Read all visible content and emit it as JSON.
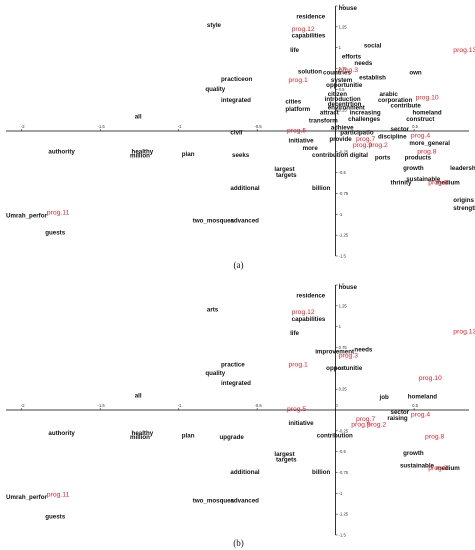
{
  "colors": {
    "word": "#111111",
    "program": "#e8202a",
    "axis": "#000000"
  },
  "chart_data": [
    {
      "type": "scatter",
      "caption": "(a)",
      "xlim": [
        -2.1,
        0.85
      ],
      "ylim": [
        -1.5,
        1.5
      ],
      "x_ticks": [
        "-2",
        "-1.5",
        "-1",
        "-0.5",
        "0",
        "0.5"
      ],
      "y_ticks": [
        "1.5",
        "1.25",
        "1",
        "0.75",
        "0.5",
        "0.25",
        "-0.25",
        "-0.5",
        "-0.75",
        "-1",
        "-1.25",
        "-1.5"
      ],
      "terms": [
        {
          "label": "house",
          "x": 0.02,
          "y": 1.45
        },
        {
          "label": "residence",
          "x": -0.25,
          "y": 1.35
        },
        {
          "label": "style",
          "x": -0.82,
          "y": 1.25
        },
        {
          "label": "capabilities",
          "x": -0.28,
          "y": 1.12
        },
        {
          "label": "life",
          "x": -0.29,
          "y": 0.95
        },
        {
          "label": "social",
          "x": 0.18,
          "y": 1.0
        },
        {
          "label": "efforts",
          "x": 0.04,
          "y": 0.87
        },
        {
          "label": "needs",
          "x": 0.12,
          "y": 0.79
        },
        {
          "label": "solution",
          "x": -0.24,
          "y": 0.69
        },
        {
          "label": "countries",
          "x": -0.08,
          "y": 0.68
        },
        {
          "label": "system",
          "x": -0.03,
          "y": 0.59
        },
        {
          "label": "establish",
          "x": 0.15,
          "y": 0.62
        },
        {
          "label": "own",
          "x": 0.47,
          "y": 0.68
        },
        {
          "label": "practiceon",
          "x": -0.73,
          "y": 0.6
        },
        {
          "label": "opportunitie",
          "x": -0.06,
          "y": 0.53
        },
        {
          "label": "quality",
          "x": -0.83,
          "y": 0.48
        },
        {
          "label": "citizen",
          "x": -0.05,
          "y": 0.42
        },
        {
          "label": "introduction",
          "x": -0.07,
          "y": 0.36
        },
        {
          "label": "arabic",
          "x": 0.28,
          "y": 0.42
        },
        {
          "label": "integrated",
          "x": -0.73,
          "y": 0.35
        },
        {
          "label": "cities",
          "x": -0.32,
          "y": 0.33
        },
        {
          "label": "decentrtion",
          "x": -0.05,
          "y": 0.3
        },
        {
          "label": "corporation",
          "x": 0.27,
          "y": 0.35
        },
        {
          "label": "platform",
          "x": -0.32,
          "y": 0.24
        },
        {
          "label": "environment",
          "x": -0.05,
          "y": 0.26
        },
        {
          "label": "contribute",
          "x": 0.35,
          "y": 0.28
        },
        {
          "label": "attract",
          "x": -0.1,
          "y": 0.2
        },
        {
          "label": "increasing",
          "x": 0.09,
          "y": 0.2
        },
        {
          "label": "homeland",
          "x": 0.49,
          "y": 0.2
        },
        {
          "label": "transform",
          "x": -0.17,
          "y": 0.1
        },
        {
          "label": "challenges",
          "x": 0.08,
          "y": 0.12
        },
        {
          "label": "construct",
          "x": 0.45,
          "y": 0.12
        },
        {
          "label": "all",
          "x": -1.28,
          "y": 0.15
        },
        {
          "label": "achieve",
          "x": -0.03,
          "y": 0.02
        },
        {
          "label": "sector",
          "x": 0.35,
          "y": 0.0
        },
        {
          "label": "civil",
          "x": -0.67,
          "y": -0.04
        },
        {
          "label": "participatio",
          "x": 0.03,
          "y": -0.04
        },
        {
          "label": "discipline",
          "x": 0.27,
          "y": -0.09
        },
        {
          "label": "initiative",
          "x": -0.3,
          "y": -0.14
        },
        {
          "label": "provide",
          "x": -0.04,
          "y": -0.12
        },
        {
          "label": "more_general",
          "x": 0.47,
          "y": -0.17
        },
        {
          "label": "more",
          "x": -0.21,
          "y": -0.23
        },
        {
          "label": "authority",
          "x": -1.83,
          "y": -0.27
        },
        {
          "label": "healthy",
          "x": -1.3,
          "y": -0.27
        },
        {
          "label": "million",
          "x": -1.31,
          "y": -0.32
        },
        {
          "label": "plan",
          "x": -0.98,
          "y": -0.3
        },
        {
          "label": "seeks",
          "x": -0.66,
          "y": -0.31
        },
        {
          "label": "contribution",
          "x": -0.15,
          "y": -0.31
        },
        {
          "label": "digital",
          "x": 0.09,
          "y": -0.31
        },
        {
          "label": "ports",
          "x": 0.25,
          "y": -0.34
        },
        {
          "label": "products",
          "x": 0.44,
          "y": -0.34
        },
        {
          "label": "growth",
          "x": 0.43,
          "y": -0.47
        },
        {
          "label": "leadership",
          "x": 0.73,
          "y": -0.47
        },
        {
          "label": "largest",
          "x": -0.39,
          "y": -0.48
        },
        {
          "label": "targets",
          "x": -0.38,
          "y": -0.55
        },
        {
          "label": "sustainable",
          "x": 0.45,
          "y": -0.6
        },
        {
          "label": "thrinity",
          "x": 0.35,
          "y": -0.64
        },
        {
          "label": "medium",
          "x": 0.64,
          "y": -0.64
        },
        {
          "label": "additional",
          "x": -0.67,
          "y": -0.71
        },
        {
          "label": "billion",
          "x": -0.15,
          "y": -0.71
        },
        {
          "label": "origins",
          "x": 0.75,
          "y": -0.85
        },
        {
          "label": "strength",
          "x": 0.75,
          "y": -0.95
        },
        {
          "label": "two_mosques",
          "x": -0.91,
          "y": -1.1
        },
        {
          "label": "advanced",
          "x": -0.67,
          "y": -1.1
        },
        {
          "label": "Umrah_perfor",
          "x": -2.1,
          "y": -1.04
        },
        {
          "label": "guests",
          "x": -1.85,
          "y": -1.24
        }
      ],
      "programs": [
        {
          "label": "prog.12",
          "x": -0.28,
          "y": 1.2
        },
        {
          "label": "prog.13",
          "x": 0.75,
          "y": 0.95
        },
        {
          "label": "prog.3",
          "x": 0.02,
          "y": 0.71
        },
        {
          "label": "prog.1",
          "x": -0.3,
          "y": 0.59
        },
        {
          "label": "prog.10",
          "x": 0.51,
          "y": 0.38
        },
        {
          "label": "prog.5",
          "x": -0.31,
          "y": -0.02
        },
        {
          "label": "prog.4",
          "x": 0.48,
          "y": -0.08
        },
        {
          "label": "prog.7",
          "x": 0.13,
          "y": -0.12
        },
        {
          "label": "prog.9",
          "x": 0.11,
          "y": -0.19
        },
        {
          "label": "prog.2",
          "x": 0.21,
          "y": -0.19
        },
        {
          "label": "prog.8",
          "x": 0.52,
          "y": -0.27
        },
        {
          "label": "prog.6",
          "x": 0.59,
          "y": -0.64
        },
        {
          "label": "prog.11",
          "x": -1.84,
          "y": -1.0
        }
      ]
    },
    {
      "type": "scatter",
      "caption": "(b)",
      "xlim": [
        -2.1,
        0.85
      ],
      "ylim": [
        -1.5,
        1.5
      ],
      "x_ticks": [
        "-2",
        "-1.5",
        "-1",
        "-0.5",
        "0",
        "0.5"
      ],
      "y_ticks": [
        "1.5",
        "1.25",
        "1",
        "0.75",
        "0.5",
        "0.25",
        "-0.25",
        "-0.5",
        "-0.75",
        "-1",
        "-1.25",
        "-1.5"
      ],
      "terms": [
        {
          "label": "house",
          "x": 0.02,
          "y": 1.45
        },
        {
          "label": "residence",
          "x": -0.25,
          "y": 1.35
        },
        {
          "label": "arts",
          "x": -0.82,
          "y": 1.18
        },
        {
          "label": "capabilities",
          "x": -0.28,
          "y": 1.07
        },
        {
          "label": "life",
          "x": -0.29,
          "y": 0.9
        },
        {
          "label": "improvement",
          "x": -0.13,
          "y": 0.68
        },
        {
          "label": "needs",
          "x": 0.12,
          "y": 0.7
        },
        {
          "label": "practice",
          "x": -0.73,
          "y": 0.52
        },
        {
          "label": "opportunitie",
          "x": -0.06,
          "y": 0.48
        },
        {
          "label": "quality",
          "x": -0.83,
          "y": 0.42
        },
        {
          "label": "integrated",
          "x": -0.73,
          "y": 0.3
        },
        {
          "label": "all",
          "x": -1.28,
          "y": 0.15
        },
        {
          "label": "job",
          "x": 0.28,
          "y": 0.13
        },
        {
          "label": "homeland",
          "x": 0.46,
          "y": 0.14
        },
        {
          "label": "sector",
          "x": 0.35,
          "y": -0.05
        },
        {
          "label": "raising",
          "x": 0.33,
          "y": -0.12
        },
        {
          "label": "initiative",
          "x": -0.3,
          "y": -0.18
        },
        {
          "label": "authority",
          "x": -1.83,
          "y": -0.3
        },
        {
          "label": "healthy",
          "x": -1.3,
          "y": -0.3
        },
        {
          "label": "million",
          "x": -1.31,
          "y": -0.35
        },
        {
          "label": "plan",
          "x": -0.98,
          "y": -0.33
        },
        {
          "label": "upgrade",
          "x": -0.74,
          "y": -0.35
        },
        {
          "label": "contribution",
          "x": -0.12,
          "y": -0.33
        },
        {
          "label": "growth",
          "x": 0.43,
          "y": -0.54
        },
        {
          "label": "largest",
          "x": -0.39,
          "y": -0.55
        },
        {
          "label": "targets",
          "x": -0.38,
          "y": -0.62
        },
        {
          "label": "sustainable",
          "x": 0.41,
          "y": -0.69
        },
        {
          "label": "medium",
          "x": 0.64,
          "y": -0.72
        },
        {
          "label": "additional",
          "x": -0.67,
          "y": -0.77
        },
        {
          "label": "billion",
          "x": -0.15,
          "y": -0.77
        },
        {
          "label": "two_mosques",
          "x": -0.91,
          "y": -1.11
        },
        {
          "label": "advanced",
          "x": -0.67,
          "y": -1.11
        },
        {
          "label": "Umrah_perfor",
          "x": -2.1,
          "y": -1.07
        },
        {
          "label": "guests",
          "x": -1.85,
          "y": -1.3
        }
      ],
      "programs": [
        {
          "label": "prog.12",
          "x": -0.28,
          "y": 1.15
        },
        {
          "label": "prog.13",
          "x": 0.75,
          "y": 0.92
        },
        {
          "label": "prog.3",
          "x": 0.02,
          "y": 0.63
        },
        {
          "label": "prog.1",
          "x": -0.3,
          "y": 0.52
        },
        {
          "label": "prog.10",
          "x": 0.53,
          "y": 0.36
        },
        {
          "label": "prog.5",
          "x": -0.31,
          "y": -0.01
        },
        {
          "label": "prog.4",
          "x": 0.48,
          "y": -0.08
        },
        {
          "label": "prog.7",
          "x": 0.13,
          "y": -0.13
        },
        {
          "label": "prog.9",
          "x": 0.1,
          "y": -0.2
        },
        {
          "label": "prog.2",
          "x": 0.2,
          "y": -0.2
        },
        {
          "label": "prog.8",
          "x": 0.57,
          "y": -0.34
        },
        {
          "label": "prog.6",
          "x": 0.59,
          "y": -0.72
        },
        {
          "label": "prog.11",
          "x": -1.84,
          "y": -1.04
        }
      ]
    }
  ]
}
